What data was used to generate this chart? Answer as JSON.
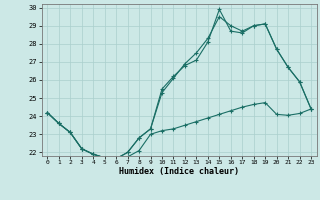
{
  "xlabel": "Humidex (Indice chaleur)",
  "background_color": "#cce8e6",
  "grid_color": "#aacfcd",
  "line_color": "#1a6e65",
  "xlim": [
    -0.5,
    23.5
  ],
  "ylim": [
    21.8,
    30.2
  ],
  "xticks": [
    0,
    1,
    2,
    3,
    4,
    5,
    6,
    7,
    8,
    9,
    10,
    11,
    12,
    13,
    14,
    15,
    16,
    17,
    18,
    19,
    20,
    21,
    22,
    23
  ],
  "yticks": [
    22,
    23,
    24,
    25,
    26,
    27,
    28,
    29,
    30
  ],
  "line1_x": [
    0,
    1,
    2,
    3,
    4,
    5,
    6,
    7,
    8,
    9,
    10,
    11,
    12,
    13,
    14,
    15,
    16,
    17,
    18,
    19,
    20,
    21,
    22,
    23
  ],
  "line1_y": [
    24.2,
    23.6,
    23.1,
    22.2,
    21.9,
    21.7,
    21.65,
    21.75,
    22.1,
    23.0,
    23.2,
    23.3,
    23.5,
    23.7,
    23.9,
    24.1,
    24.3,
    24.5,
    24.65,
    24.75,
    24.1,
    24.05,
    24.15,
    24.4
  ],
  "line2_x": [
    0,
    1,
    2,
    3,
    4,
    5,
    6,
    7,
    8,
    9,
    10,
    11,
    12,
    13,
    14,
    15,
    16,
    17,
    18,
    19,
    20,
    21,
    22,
    23
  ],
  "line2_y": [
    24.2,
    23.6,
    23.1,
    22.2,
    21.9,
    21.7,
    21.65,
    22.0,
    22.8,
    23.3,
    25.5,
    26.2,
    26.8,
    27.1,
    28.1,
    29.9,
    28.7,
    28.6,
    29.0,
    29.1,
    27.7,
    26.7,
    25.9,
    24.4
  ],
  "line3_x": [
    0,
    1,
    2,
    3,
    4,
    5,
    6,
    7,
    8,
    9,
    10,
    11,
    12,
    13,
    14,
    15,
    16,
    17,
    18,
    19,
    20,
    21,
    22,
    23
  ],
  "line3_y": [
    24.2,
    23.6,
    23.1,
    22.2,
    21.9,
    21.7,
    21.65,
    22.0,
    22.8,
    23.3,
    25.3,
    26.1,
    26.9,
    27.5,
    28.3,
    29.5,
    29.0,
    28.7,
    29.0,
    29.1,
    27.7,
    26.7,
    25.9,
    24.4
  ]
}
